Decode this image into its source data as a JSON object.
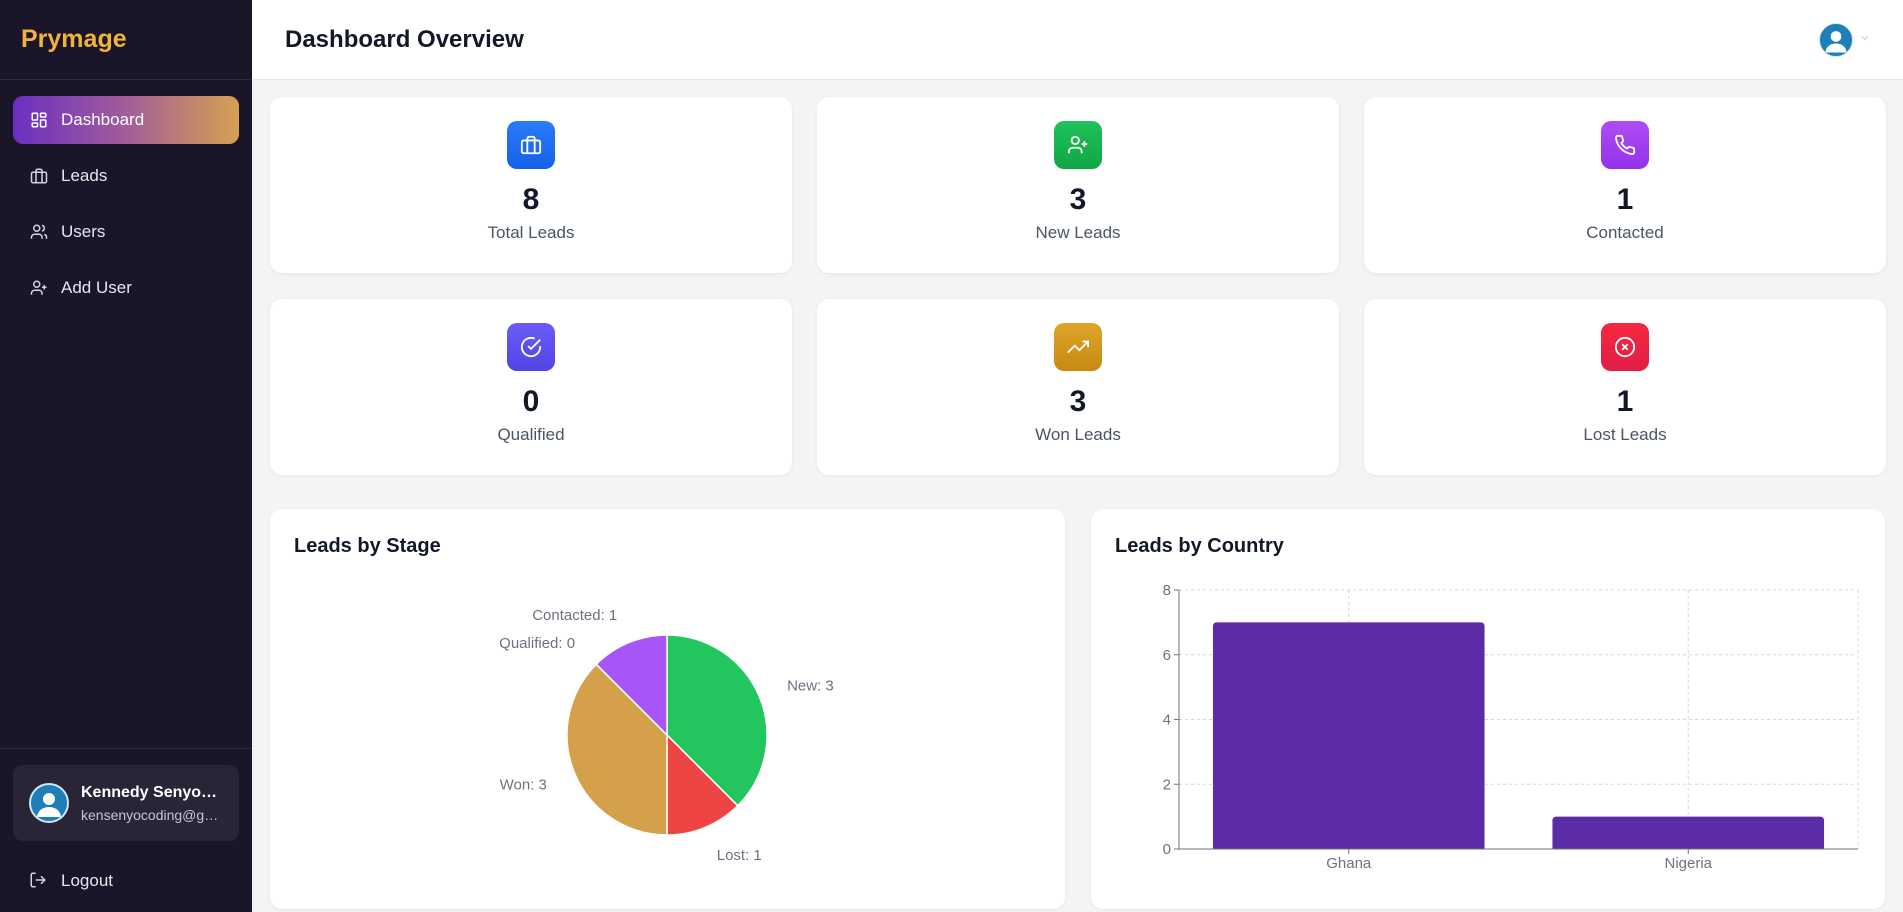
{
  "app": {
    "brand": "Prymage"
  },
  "sidebar": {
    "items": [
      {
        "label": "Dashboard",
        "icon": "dashboard-icon",
        "active": true
      },
      {
        "label": "Leads",
        "icon": "briefcase-icon",
        "active": false
      },
      {
        "label": "Users",
        "icon": "users-icon",
        "active": false
      },
      {
        "label": "Add User",
        "icon": "user-plus-icon",
        "active": false
      }
    ],
    "user": {
      "name": "Kennedy Senyo Tornyeviadzi",
      "email": "kensenyocoding@gmail.com"
    },
    "logout_label": "Logout"
  },
  "header": {
    "title": "Dashboard Overview"
  },
  "stats": [
    {
      "value": "8",
      "label": "Total Leads",
      "icon": "briefcase-icon",
      "color": "#1d6ff2"
    },
    {
      "value": "3",
      "label": "New Leads",
      "icon": "user-plus-icon",
      "color": "#16b84f"
    },
    {
      "value": "1",
      "label": "Contacted",
      "icon": "phone-icon",
      "color": "#a23ef0"
    },
    {
      "value": "0",
      "label": "Qualified",
      "icon": "check-circle-icon",
      "color": "#5b4cf0"
    },
    {
      "value": "3",
      "label": "Won Leads",
      "icon": "trending-up-icon",
      "color": "#d29a1a"
    },
    {
      "value": "1",
      "label": "Lost Leads",
      "icon": "x-circle-icon",
      "color": "#ee1c3d"
    }
  ],
  "charts": {
    "stage_title": "Leads by Stage",
    "country_title": "Leads by Country"
  },
  "chart_data": [
    {
      "type": "pie",
      "title": "Leads by Stage",
      "slices": [
        {
          "name": "New",
          "value": 3,
          "color": "#22c55e",
          "label": "New: 3"
        },
        {
          "name": "Lost",
          "value": 1,
          "color": "#ef4444",
          "label": "Lost: 1"
        },
        {
          "name": "Won",
          "value": 3,
          "color": "#d4a04a",
          "label": "Won: 3"
        },
        {
          "name": "Qualified",
          "value": 0,
          "color": "#6366f1",
          "label": "Qualified: 0"
        },
        {
          "name": "Contacted",
          "value": 1,
          "color": "#a855f7",
          "label": "Contacted: 1"
        }
      ]
    },
    {
      "type": "bar",
      "title": "Leads by Country",
      "categories": [
        "Ghana",
        "Nigeria"
      ],
      "values": [
        7,
        1
      ],
      "ylim": [
        0,
        8
      ],
      "yticks": [
        0,
        2,
        4,
        6,
        8
      ],
      "bar_color": "#5b2ca6",
      "grid": true
    }
  ]
}
